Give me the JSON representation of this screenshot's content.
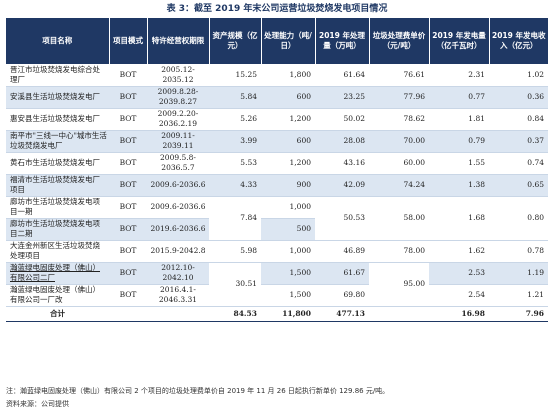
{
  "title": "表 3：截至 2019 年末公司运营垃圾焚烧发电项目情况",
  "headers": [
    "项目名称",
    "项目模式",
    "特许经营权期限",
    "资产规模（亿元）",
    "处理能力（吨/日）",
    "2019 年处理量（万吨）",
    "垃圾处理费单价（元/吨）",
    "2019 年发电量（亿千瓦时）",
    "2019 年发电收入（亿元）"
  ],
  "rows": [
    {
      "name": "晋江市垃圾焚烧发电综合处理厂",
      "mode": "BOT",
      "term": "2005.12-2035.12",
      "assets": "15.25",
      "capacity": "1,800",
      "volume": "61.64",
      "fee": "76.61",
      "power": "2.31",
      "revenue": "1.02"
    },
    {
      "name": "安溪县生活垃圾焚烧发电厂",
      "mode": "BOT",
      "term": "2009.8.28-2039.8.27",
      "assets": "5.84",
      "capacity": "600",
      "volume": "23.25",
      "fee": "77.96",
      "power": "0.77",
      "revenue": "0.36"
    },
    {
      "name": "惠安县生活垃圾焚烧发电厂",
      "mode": "BOT",
      "term": "2009.2.20-2036.2.19",
      "assets": "5.26",
      "capacity": "1,200",
      "volume": "50.02",
      "fee": "78.62",
      "power": "1.81",
      "revenue": "0.84"
    },
    {
      "name": "南平市\"三线一中心\"城市生活垃圾焚烧发电厂",
      "mode": "BOT",
      "term": "2009.11-2039.11",
      "assets": "3.99",
      "capacity": "600",
      "volume": "28.08",
      "fee": "70.00",
      "power": "0.79",
      "revenue": "0.37"
    },
    {
      "name": "黄石市生活垃圾焚烧发电厂",
      "mode": "BOT",
      "term": "2009.5.8-2036.5.7",
      "assets": "5.53",
      "capacity": "1,200",
      "volume": "43.16",
      "fee": "60.00",
      "power": "1.55",
      "revenue": "0.74"
    },
    {
      "name": "福清市生活垃圾焚烧发电厂项目",
      "mode": "BOT",
      "term": "2009.6-2036.6",
      "assets": "4.33",
      "capacity": "900",
      "volume": "42.09",
      "fee": "74.24",
      "power": "1.38",
      "revenue": "0.65"
    },
    {
      "name": "廊坊市生活垃圾焚烧发电项目一期",
      "mode": "BOT",
      "term": "2009.6-2036.6",
      "capacity": "1,000"
    },
    {
      "name": "廊坊市生活垃圾焚烧发电项目二期",
      "mode": "BOT",
      "term": "2019.6-2036.6",
      "capacity": "500"
    },
    {
      "name": "大连金州新区生活垃圾焚烧处理项目",
      "mode": "BOT",
      "term": "2015.9-2042.8",
      "assets": "5.98",
      "capacity": "1,000",
      "volume": "46.89",
      "fee": "78.00",
      "power": "1.62",
      "revenue": "0.78"
    },
    {
      "name": "瀚蓝绿电固废处理（佛山）有限公司二厂",
      "mode": "BOT",
      "term": "2012.10-2042.10",
      "capacity": "1,500",
      "volume": "61.67",
      "power": "2.53",
      "revenue": "1.19"
    },
    {
      "name": "瀚蓝绿电固废处理（佛山）有限公司一厂改",
      "mode": "BOT",
      "term": "2016.4.1-2046.3.31",
      "capacity": "1,500",
      "volume": "69.80",
      "power": "2.54",
      "revenue": "1.21"
    }
  ],
  "merged": {
    "langfang": {
      "assets": "7.84",
      "volume": "50.53",
      "fee": "58.00",
      "power": "1.68",
      "revenue": "0.80"
    },
    "foshan": {
      "assets": "30.51",
      "fee": "95.00"
    }
  },
  "total": {
    "label": "合计",
    "assets": "84.53",
    "capacity": "11,800",
    "volume": "477.13",
    "power": "16.98",
    "revenue": "7.96"
  },
  "note": "注：瀚蓝绿电固废处理（佛山）有限公司 2 个项目的垃圾处理费单价自 2019 年 11 月 26 日起执行新单价 129.86 元/吨。",
  "source": "资料来源：公司提供"
}
